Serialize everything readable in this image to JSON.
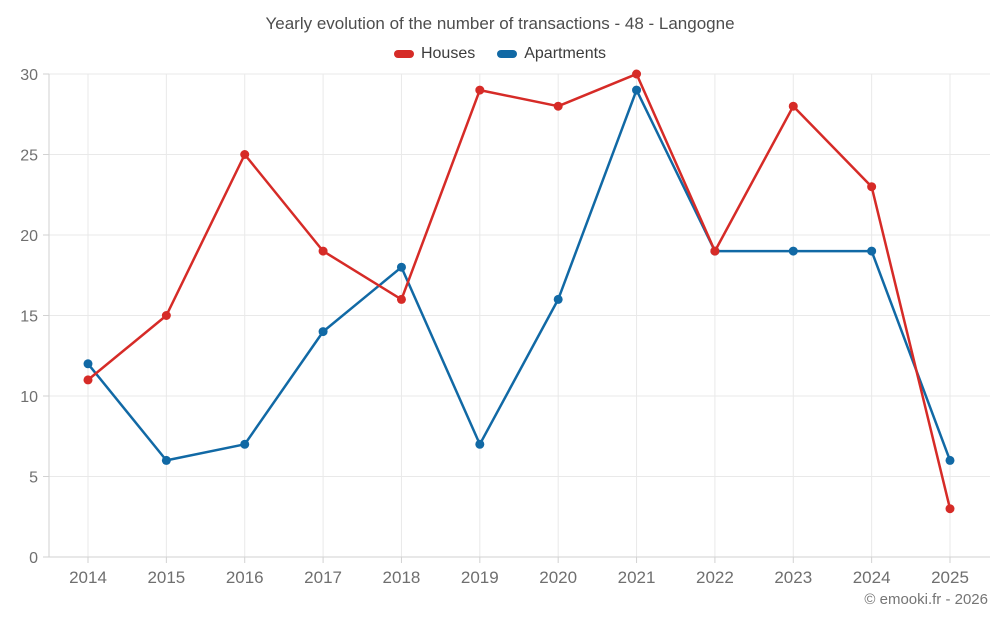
{
  "page": {
    "footer_credit": "© emooki.fr - 2026"
  },
  "chart_data": {
    "type": "line",
    "title": "Yearly evolution of the number of transactions - 48 - Langogne",
    "categories": [
      "2014",
      "2015",
      "2016",
      "2017",
      "2018",
      "2019",
      "2020",
      "2021",
      "2022",
      "2023",
      "2024",
      "2025"
    ],
    "series": [
      {
        "name": "Houses",
        "color": "#d62b27",
        "values": [
          11,
          15,
          25,
          19,
          16,
          29,
          28,
          30,
          19,
          28,
          23,
          3
        ]
      },
      {
        "name": "Apartments",
        "color": "#1169a5",
        "values": [
          12,
          6,
          7,
          14,
          18,
          7,
          16,
          29,
          19,
          19,
          19,
          6
        ]
      }
    ],
    "xlabel": "",
    "ylabel": "",
    "ylim": [
      0,
      30
    ],
    "yticks": [
      0,
      5,
      10,
      15,
      20,
      25,
      30
    ],
    "grid": true,
    "legend_position": "top",
    "marker": "circle"
  }
}
